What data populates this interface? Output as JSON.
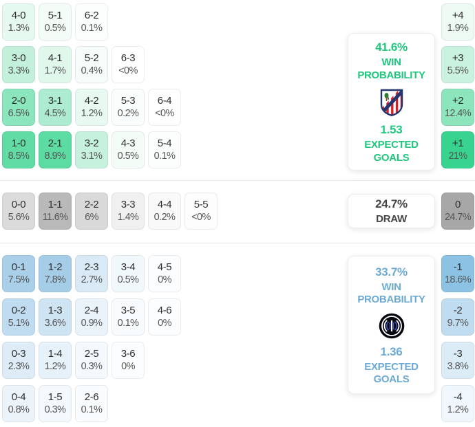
{
  "chart_data": {
    "type": "heatmap",
    "title": "Correct score probability matrix with goal-margin distribution",
    "home": {
      "win_probability": "41.6%",
      "expected_goals": "1.53",
      "score_rows": [
        [
          {
            "score": "4-0",
            "pct": "1.3%",
            "bg": "#e6f9f0"
          },
          {
            "score": "5-1",
            "pct": "0.5%",
            "bg": "#f4fcf8"
          },
          {
            "score": "6-2",
            "pct": "0.1%",
            "bg": "#fbfefd"
          }
        ],
        [
          {
            "score": "3-0",
            "pct": "3.3%",
            "bg": "#c2f0db"
          },
          {
            "score": "4-1",
            "pct": "1.7%",
            "bg": "#e0f7ec"
          },
          {
            "score": "5-2",
            "pct": "0.4%",
            "bg": "#f6fcf9"
          },
          {
            "score": "6-3",
            "pct": "<0%",
            "bg": "#fefffe"
          }
        ],
        [
          {
            "score": "2-0",
            "pct": "6.5%",
            "bg": "#8be5bd"
          },
          {
            "score": "3-1",
            "pct": "4.5%",
            "bg": "#aeecd1"
          },
          {
            "score": "4-2",
            "pct": "1.2%",
            "bg": "#e7f9f1"
          },
          {
            "score": "5-3",
            "pct": "0.2%",
            "bg": "#f9fdfb"
          },
          {
            "score": "6-4",
            "pct": "<0%",
            "bg": "#fefffe"
          }
        ],
        [
          {
            "score": "1-0",
            "pct": "8.5%",
            "bg": "#61dca5"
          },
          {
            "score": "2-1",
            "pct": "8.9%",
            "bg": "#5cdba2"
          },
          {
            "score": "3-2",
            "pct": "3.1%",
            "bg": "#c6f1dd"
          },
          {
            "score": "4-3",
            "pct": "0.5%",
            "bg": "#f4fcf8"
          },
          {
            "score": "5-4",
            "pct": "0.1%",
            "bg": "#fbfefd"
          }
        ]
      ],
      "margins": [
        {
          "label": "+4",
          "pct": "1.9%",
          "bg": "#ecfaf3"
        },
        {
          "label": "+3",
          "pct": "5.5%",
          "bg": "#c9f2df"
        },
        {
          "label": "+2",
          "pct": "12.4%",
          "bg": "#8ce5bd"
        },
        {
          "label": "+1",
          "pct": "21%",
          "bg": "#38d38f"
        }
      ]
    },
    "draw": {
      "probability": "24.7%",
      "score_row": [
        {
          "score": "0-0",
          "pct": "5.6%",
          "bg": "#dbdbdb"
        },
        {
          "score": "1-1",
          "pct": "11.6%",
          "bg": "#b9b9b9"
        },
        {
          "score": "2-2",
          "pct": "6%",
          "bg": "#d9d9d9"
        },
        {
          "score": "3-3",
          "pct": "1.4%",
          "bg": "#f0f0f0"
        },
        {
          "score": "4-4",
          "pct": "0.2%",
          "bg": "#f9f9f9"
        },
        {
          "score": "5-5",
          "pct": "<0%",
          "bg": "#fdfdfd"
        }
      ],
      "margin": {
        "label": "0",
        "pct": "24.7%",
        "bg": "#a7a7a7"
      }
    },
    "away": {
      "win_probability": "33.7%",
      "expected_goals": "1.36",
      "score_rows": [
        [
          {
            "score": "0-1",
            "pct": "7.5%",
            "bg": "#a9cfe9"
          },
          {
            "score": "1-2",
            "pct": "7.8%",
            "bg": "#a6cde8"
          },
          {
            "score": "2-3",
            "pct": "2.7%",
            "bg": "#d9eaf6"
          },
          {
            "score": "3-4",
            "pct": "0.5%",
            "bg": "#f1f8fc"
          },
          {
            "score": "4-5",
            "pct": "0%",
            "bg": "#fbfdfe"
          }
        ],
        [
          {
            "score": "0-2",
            "pct": "5.1%",
            "bg": "#c0dcf0"
          },
          {
            "score": "1-3",
            "pct": "3.6%",
            "bg": "#cfe4f3"
          },
          {
            "score": "2-4",
            "pct": "0.9%",
            "bg": "#eaf3fa"
          },
          {
            "score": "3-5",
            "pct": "0.1%",
            "bg": "#f8fbfd"
          },
          {
            "score": "4-6",
            "pct": "0%",
            "bg": "#fcfdfe"
          }
        ],
        [
          {
            "score": "0-3",
            "pct": "2.3%",
            "bg": "#ddecf7"
          },
          {
            "score": "1-4",
            "pct": "1.2%",
            "bg": "#e7f1f9"
          },
          {
            "score": "2-5",
            "pct": "0.3%",
            "bg": "#f4f9fd"
          },
          {
            "score": "3-6",
            "pct": "0%",
            "bg": "#fbfdfe"
          }
        ],
        [
          {
            "score": "0-4",
            "pct": "0.8%",
            "bg": "#ecf4fa"
          },
          {
            "score": "1-5",
            "pct": "0.3%",
            "bg": "#f4f9fd"
          },
          {
            "score": "2-6",
            "pct": "0.1%",
            "bg": "#f9fcfe"
          }
        ]
      ],
      "margins": [
        {
          "label": "-1",
          "pct": "18.6%",
          "bg": "#8cc3e5"
        },
        {
          "label": "-2",
          "pct": "9.7%",
          "bg": "#c0dcf0"
        },
        {
          "label": "-3",
          "pct": "3.8%",
          "bg": "#dcecf7"
        },
        {
          "label": "-4",
          "pct": "1.2%",
          "bg": "#f0f7fc"
        }
      ]
    }
  },
  "labels": {
    "win_line1": "WIN",
    "win_line2": "PROBABILITY",
    "xg_line1": "EXPECTED",
    "xg_line2": "GOALS",
    "draw": "DRAW"
  },
  "icons": {
    "home_crest": "atletico-madrid-crest",
    "away_crest": "inter-milan-crest"
  },
  "colors": {
    "home_accent": "#1fc77c",
    "away_accent": "#6caad4",
    "draw_text": "#454545",
    "separator": "#e6e6e6"
  }
}
